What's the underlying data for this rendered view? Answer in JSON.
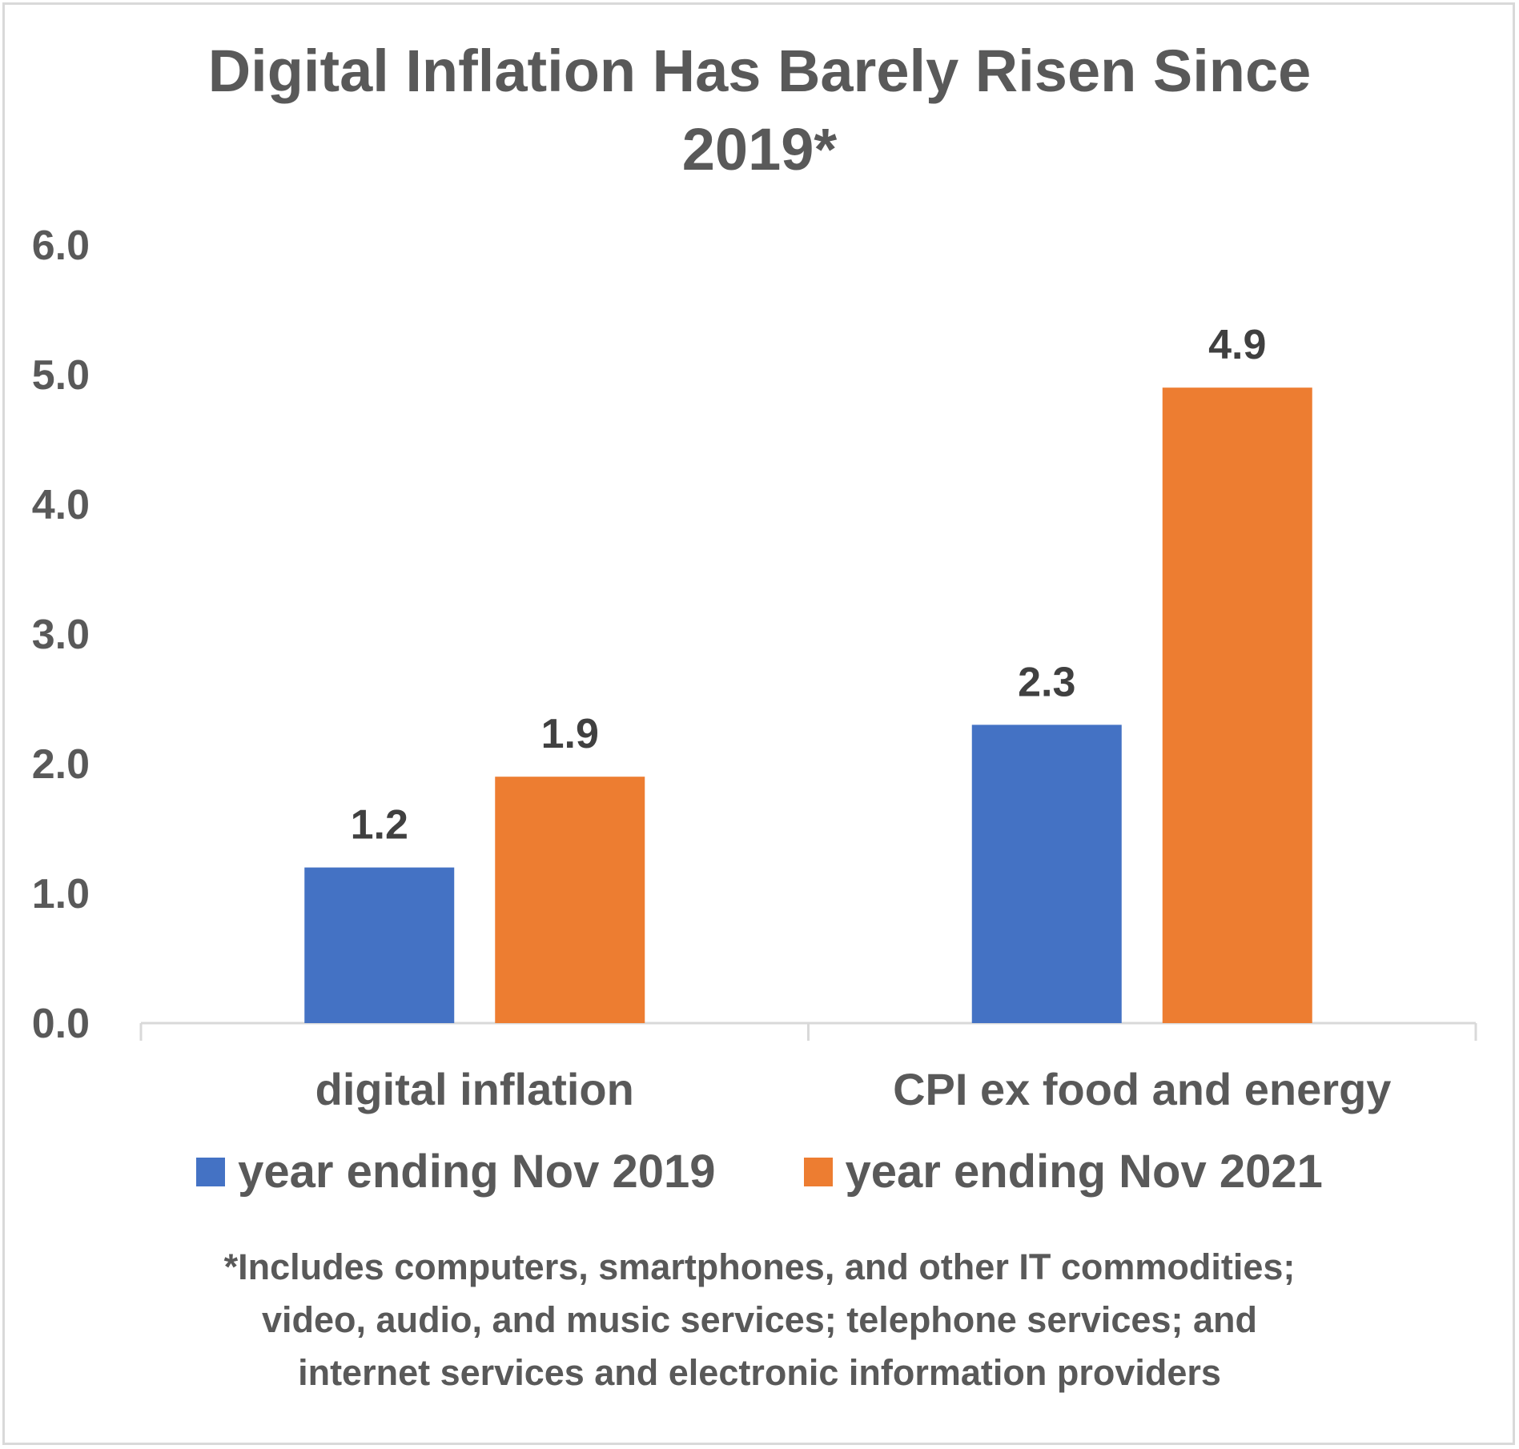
{
  "chart_data": {
    "type": "bar",
    "title": [
      "Digital Inflation Has Barely Risen Since",
      "2019*"
    ],
    "categories": [
      "digital inflation",
      "CPI ex food and energy"
    ],
    "series": [
      {
        "name": "year ending Nov 2019",
        "color": "#4472C4",
        "values": [
          1.2,
          2.3
        ]
      },
      {
        "name": "year ending Nov 2021",
        "color": "#ED7D31",
        "values": [
          1.9,
          4.9
        ]
      }
    ],
    "data_labels": [
      [
        "1.2",
        "2.3"
      ],
      [
        "1.9",
        "4.9"
      ]
    ],
    "ylim": [
      0,
      6
    ],
    "yticks": [
      "0.0",
      "1.0",
      "2.0",
      "3.0",
      "4.0",
      "5.0",
      "6.0"
    ],
    "grid": false,
    "legend_position": "bottom",
    "footnote": [
      "*Includes computers, smartphones, and other IT commodities;",
      "video, audio, and music services; telephone services; and",
      "internet services and electronic information providers"
    ]
  }
}
